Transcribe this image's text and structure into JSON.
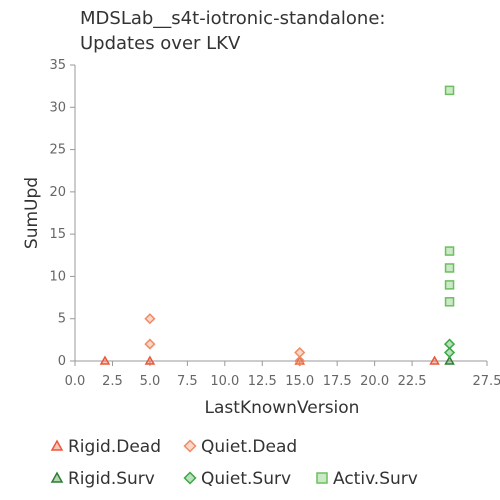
{
  "chart_data": {
    "type": "scatter",
    "title_lines": [
      "MDSLab__s4t-iotronic-standalone:",
      "Updates over LKV"
    ],
    "xlabel": "LastKnownVersion",
    "ylabel": "SumUpd",
    "xlim": [
      0,
      27.5
    ],
    "ylim": [
      0,
      35
    ],
    "x_ticks": [
      "0.0",
      "2.5",
      "5.0",
      "7.5",
      "10.0",
      "12.5",
      "15.0",
      "17.5",
      "20.0",
      "22.5",
      "27.5"
    ],
    "y_ticks": [
      "0",
      "5",
      "10",
      "15",
      "20",
      "25",
      "30",
      "35"
    ],
    "grid": false,
    "legend_position": "bottom",
    "series": [
      {
        "name": "Rigid.Dead",
        "marker": "triangle",
        "color": "#e8583a",
        "points": [
          [
            2,
            0
          ],
          [
            5,
            0
          ],
          [
            15,
            0
          ],
          [
            24,
            0
          ]
        ]
      },
      {
        "name": "Quiet.Dead",
        "marker": "diamond",
        "color": "#f08c64",
        "points": [
          [
            5,
            5
          ],
          [
            5,
            2
          ],
          [
            15,
            1
          ],
          [
            15,
            0
          ]
        ]
      },
      {
        "name": "Rigid.Surv",
        "marker": "triangle",
        "color": "#2e7d32",
        "points": [
          [
            25,
            0
          ]
        ]
      },
      {
        "name": "Quiet.Surv",
        "marker": "diamond",
        "color": "#3aa843",
        "points": [
          [
            25,
            2
          ],
          [
            25,
            1
          ]
        ]
      },
      {
        "name": "Activ.Surv",
        "marker": "square",
        "color": "#6cbf5e",
        "points": [
          [
            25,
            32
          ],
          [
            25,
            13
          ],
          [
            25,
            11
          ],
          [
            25,
            9
          ],
          [
            25,
            7
          ]
        ]
      }
    ]
  }
}
